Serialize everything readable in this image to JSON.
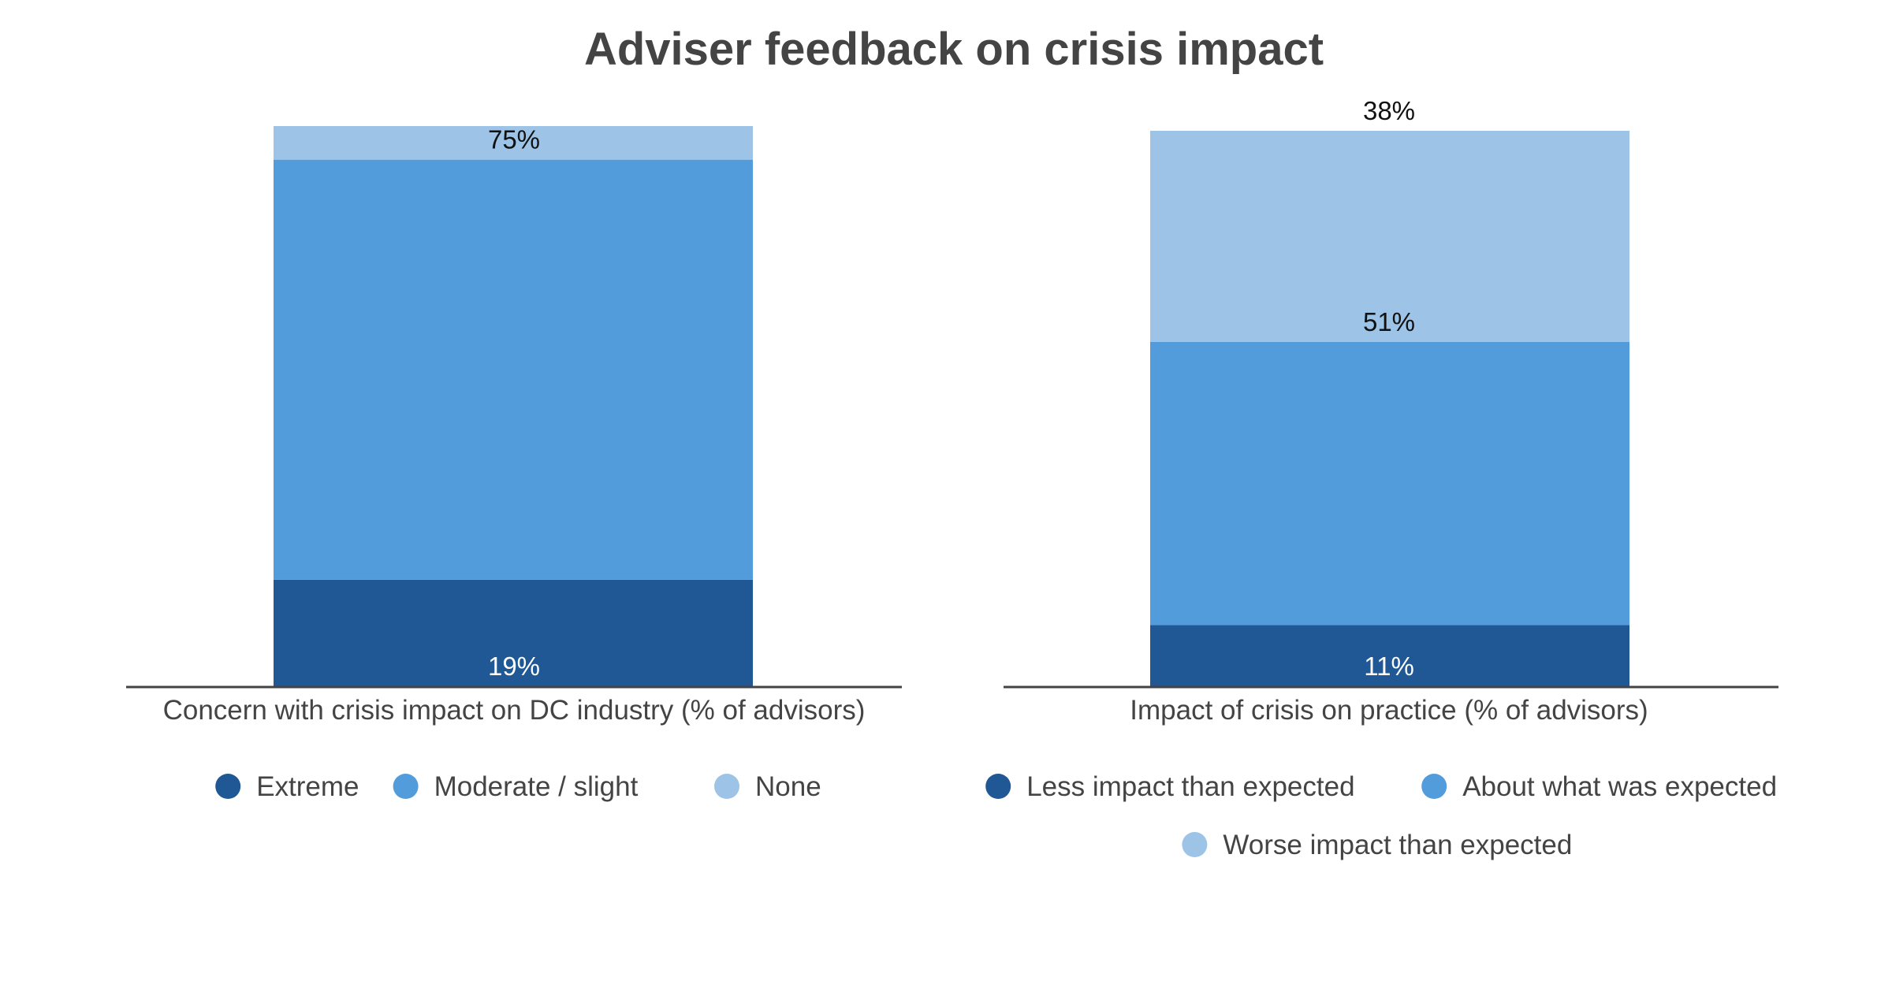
{
  "chart_data": [
    {
      "type": "bar",
      "stacked": true,
      "categories": [
        "Concern with crisis impact on DC industry (% of advisors)"
      ],
      "series": [
        {
          "name": "Extreme",
          "values": [
            19
          ],
          "label": "19%",
          "color": "#1f5894"
        },
        {
          "name": "Moderate / slight",
          "values": [
            75
          ],
          "label": "75%",
          "color": "#529cdb"
        },
        {
          "name": "None",
          "values": [
            6
          ],
          "label": "",
          "color": "#9dc3e6"
        }
      ],
      "ylim": [
        0,
        100
      ],
      "grid": false,
      "legend": "bottom"
    },
    {
      "type": "bar",
      "stacked": true,
      "categories": [
        "Impact of crisis on practice (% of advisors)"
      ],
      "series": [
        {
          "name": "Less impact than expected",
          "values": [
            11
          ],
          "label": "11%",
          "color": "#1f5894"
        },
        {
          "name": "About what was expected",
          "values": [
            51
          ],
          "label": "51%",
          "color": "#529cdb"
        },
        {
          "name": "Worse impact than expected",
          "values": [
            38
          ],
          "label": "38%",
          "color": "#9dc3e6"
        }
      ],
      "ylim": [
        0,
        100
      ],
      "grid": false,
      "legend": "bottom"
    }
  ],
  "title": "Adviser feedback on crisis impact"
}
